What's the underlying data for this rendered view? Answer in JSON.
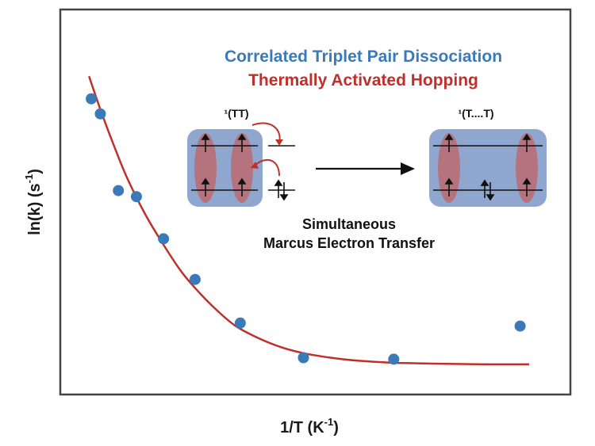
{
  "chart_data": {
    "type": "scatter",
    "xlabel": "1/T (K",
    "xlabel_sup": "-1",
    "xlabel_close": ")",
    "ylabel": "ln(k) (s",
    "ylabel_sup": "-1",
    "ylabel_close": ")",
    "xlim": [
      0,
      1
    ],
    "ylim": [
      0,
      1
    ],
    "grid": false,
    "series": [
      {
        "name": "Correlated Triplet Pair Dissociation",
        "kind": "points",
        "color": "#3a7ab9",
        "x": [
          0.03,
          0.05,
          0.09,
          0.13,
          0.19,
          0.26,
          0.36,
          0.5,
          0.7,
          0.98
        ],
        "y": [
          0.935,
          0.885,
          0.63,
          0.61,
          0.47,
          0.335,
          0.19,
          0.075,
          0.07,
          0.18
        ]
      },
      {
        "name": "Thermally Activated Hopping",
        "kind": "line",
        "color": "#c0302a",
        "x": [
          0.025,
          0.05,
          0.08,
          0.11,
          0.15,
          0.19,
          0.23,
          0.27,
          0.31,
          0.35,
          0.4,
          0.45,
          0.5,
          0.56,
          0.62,
          0.7,
          0.8,
          0.9,
          1.0
        ],
        "y": [
          1.01,
          0.9,
          0.78,
          0.67,
          0.55,
          0.45,
          0.36,
          0.29,
          0.23,
          0.18,
          0.14,
          0.11,
          0.09,
          0.075,
          0.065,
          0.058,
          0.055,
          0.053,
          0.053
        ]
      }
    ],
    "legend_placement": "top-right"
  },
  "inset": {
    "left_state": "¹(TT)",
    "right_state": "¹(T....T)",
    "caption_line1": "Simultaneous",
    "caption_line2": "Marcus Electron Transfer"
  },
  "colors": {
    "box_fill": "#8fa6cf",
    "lobe_fill": "#b5737d",
    "arrow_red": "#c0302a"
  }
}
